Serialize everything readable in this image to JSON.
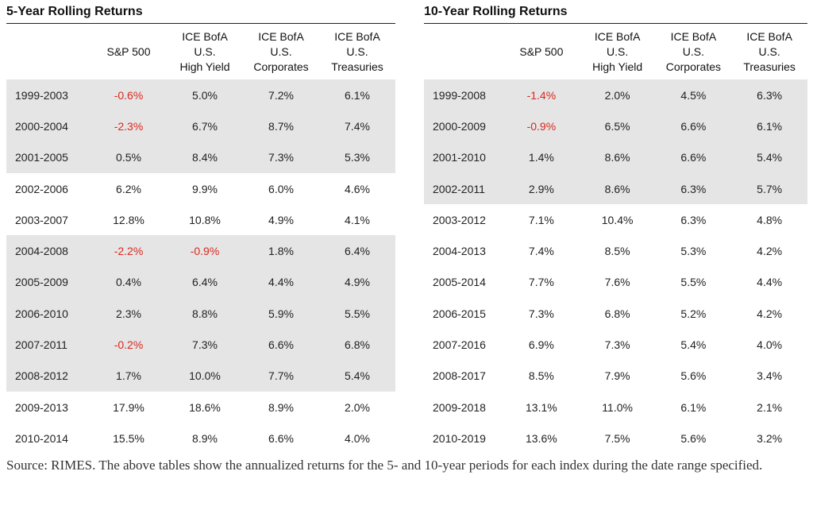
{
  "left": {
    "title": "5-Year Rolling Returns",
    "headers": [
      "",
      "S&P 500",
      "ICE BofA\nU.S.\nHigh Yield",
      "ICE BofA\nU.S.\nCorporates",
      "ICE BofA\nU.S.\nTreasuries"
    ],
    "rows": [
      {
        "shade": true,
        "cells": [
          "1999-2003",
          "-0.6%",
          "5.0%",
          "7.2%",
          "6.1%"
        ]
      },
      {
        "shade": true,
        "cells": [
          "2000-2004",
          "-2.3%",
          "6.7%",
          "8.7%",
          "7.4%"
        ]
      },
      {
        "shade": true,
        "cells": [
          "2001-2005",
          "0.5%",
          "8.4%",
          "7.3%",
          "5.3%"
        ]
      },
      {
        "shade": false,
        "cells": [
          "2002-2006",
          "6.2%",
          "9.9%",
          "6.0%",
          "4.6%"
        ]
      },
      {
        "shade": false,
        "cells": [
          "2003-2007",
          "12.8%",
          "10.8%",
          "4.9%",
          "4.1%"
        ]
      },
      {
        "shade": true,
        "cells": [
          "2004-2008",
          "-2.2%",
          "-0.9%",
          "1.8%",
          "6.4%"
        ]
      },
      {
        "shade": true,
        "cells": [
          "2005-2009",
          "0.4%",
          "6.4%",
          "4.4%",
          "4.9%"
        ]
      },
      {
        "shade": true,
        "cells": [
          "2006-2010",
          "2.3%",
          "8.8%",
          "5.9%",
          "5.5%"
        ]
      },
      {
        "shade": true,
        "cells": [
          "2007-2011",
          "-0.2%",
          "7.3%",
          "6.6%",
          "6.8%"
        ]
      },
      {
        "shade": true,
        "cells": [
          "2008-2012",
          "1.7%",
          "10.0%",
          "7.7%",
          "5.4%"
        ]
      },
      {
        "shade": false,
        "cells": [
          "2009-2013",
          "17.9%",
          "18.6%",
          "8.9%",
          "2.0%"
        ]
      },
      {
        "shade": false,
        "cells": [
          "2010-2014",
          "15.5%",
          "8.9%",
          "6.6%",
          "4.0%"
        ]
      }
    ]
  },
  "right": {
    "title": "10-Year Rolling Returns",
    "headers": [
      "",
      "S&P 500",
      "ICE BofA\nU.S.\nHigh Yield",
      "ICE BofA\nU.S.\nCorporates",
      "ICE BofA\nU.S.\nTreasuries"
    ],
    "rows": [
      {
        "shade": true,
        "cells": [
          "1999-2008",
          "-1.4%",
          "2.0%",
          "4.5%",
          "6.3%"
        ]
      },
      {
        "shade": true,
        "cells": [
          "2000-2009",
          "-0.9%",
          "6.5%",
          "6.6%",
          "6.1%"
        ]
      },
      {
        "shade": true,
        "cells": [
          "2001-2010",
          "1.4%",
          "8.6%",
          "6.6%",
          "5.4%"
        ]
      },
      {
        "shade": true,
        "cells": [
          "2002-2011",
          "2.9%",
          "8.6%",
          "6.3%",
          "5.7%"
        ]
      },
      {
        "shade": false,
        "cells": [
          "2003-2012",
          "7.1%",
          "10.4%",
          "6.3%",
          "4.8%"
        ]
      },
      {
        "shade": false,
        "cells": [
          "2004-2013",
          "7.4%",
          "8.5%",
          "5.3%",
          "4.2%"
        ]
      },
      {
        "shade": false,
        "cells": [
          "2005-2014",
          "7.7%",
          "7.6%",
          "5.5%",
          "4.4%"
        ]
      },
      {
        "shade": false,
        "cells": [
          "2006-2015",
          "7.3%",
          "6.8%",
          "5.2%",
          "4.2%"
        ]
      },
      {
        "shade": false,
        "cells": [
          "2007-2016",
          "6.9%",
          "7.3%",
          "5.4%",
          "4.0%"
        ]
      },
      {
        "shade": false,
        "cells": [
          "2008-2017",
          "8.5%",
          "7.9%",
          "5.6%",
          "3.4%"
        ]
      },
      {
        "shade": false,
        "cells": [
          "2009-2018",
          "13.1%",
          "11.0%",
          "6.1%",
          "2.1%"
        ]
      },
      {
        "shade": false,
        "cells": [
          "2010-2019",
          "13.6%",
          "7.5%",
          "5.6%",
          "3.2%"
        ]
      }
    ]
  },
  "colors": {
    "shade": "#e5e5e5",
    "negative": "#d9281e"
  },
  "source": "Source: RIMES. The above tables show the annualized returns for the 5- and 10-year periods for each index during the date range specified."
}
